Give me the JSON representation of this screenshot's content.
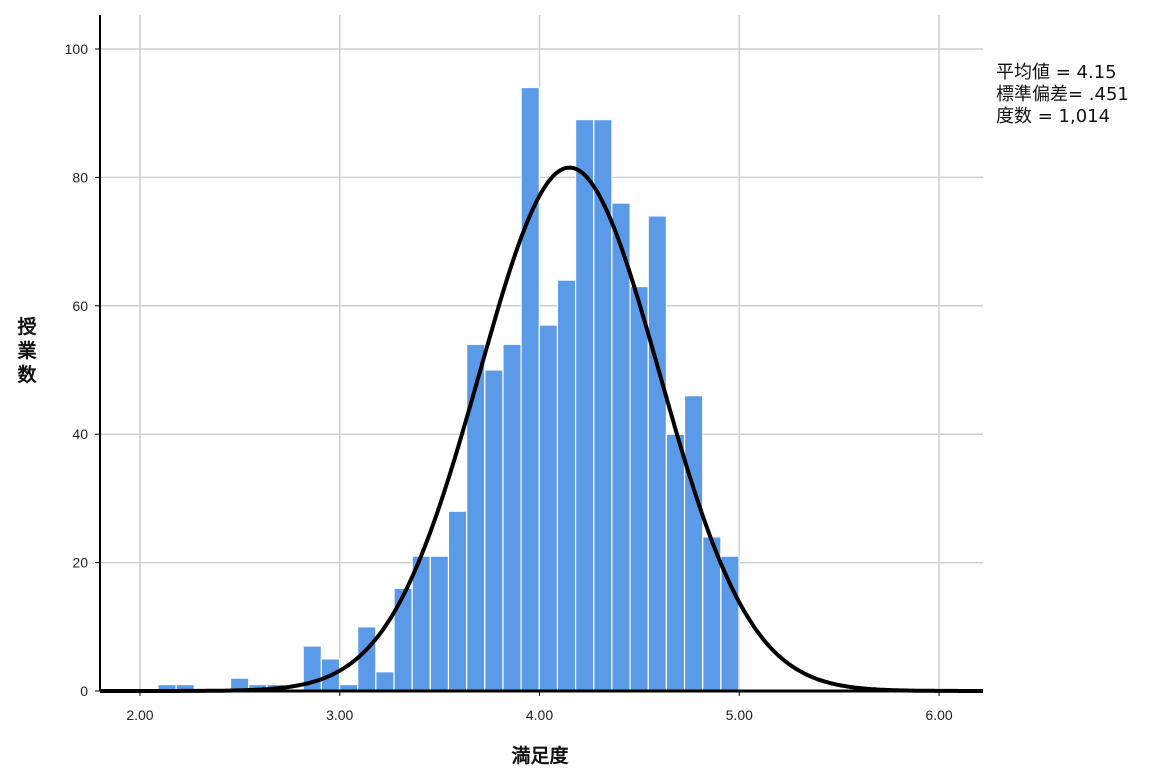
{
  "chart_data": {
    "type": "bar",
    "subtype": "histogram",
    "xlabel": "満足度",
    "ylabel": "授業数",
    "xlim": [
      1.8,
      6.22
    ],
    "ylim": [
      0,
      100
    ],
    "x_ticks": [
      2,
      3,
      4,
      5,
      6
    ],
    "x_tick_labels": [
      "2.00",
      "3.00",
      "4.00",
      "5.00",
      "6.00"
    ],
    "y_ticks": [
      0,
      20,
      40,
      60,
      80,
      100
    ],
    "y_tick_labels": [
      "0",
      "20",
      "40",
      "60",
      "80",
      "100"
    ],
    "grid": true,
    "bin_width": 0.0909,
    "bins_start": 2.09,
    "values": [
      1,
      1,
      0,
      0,
      2,
      1,
      1,
      0,
      7,
      5,
      1,
      10,
      3,
      16,
      21,
      21,
      28,
      54,
      50,
      54,
      94,
      57,
      64,
      89,
      89,
      76,
      63,
      74,
      40,
      46,
      24,
      21
    ],
    "bar_color": "#5b9ae6",
    "normal_curve": {
      "mean": 4.15,
      "sd": 0.451,
      "n": 1014
    },
    "stats": [
      "平均値 = 4.15",
      "標準偏差= .451",
      "度数 = 1,014"
    ]
  }
}
